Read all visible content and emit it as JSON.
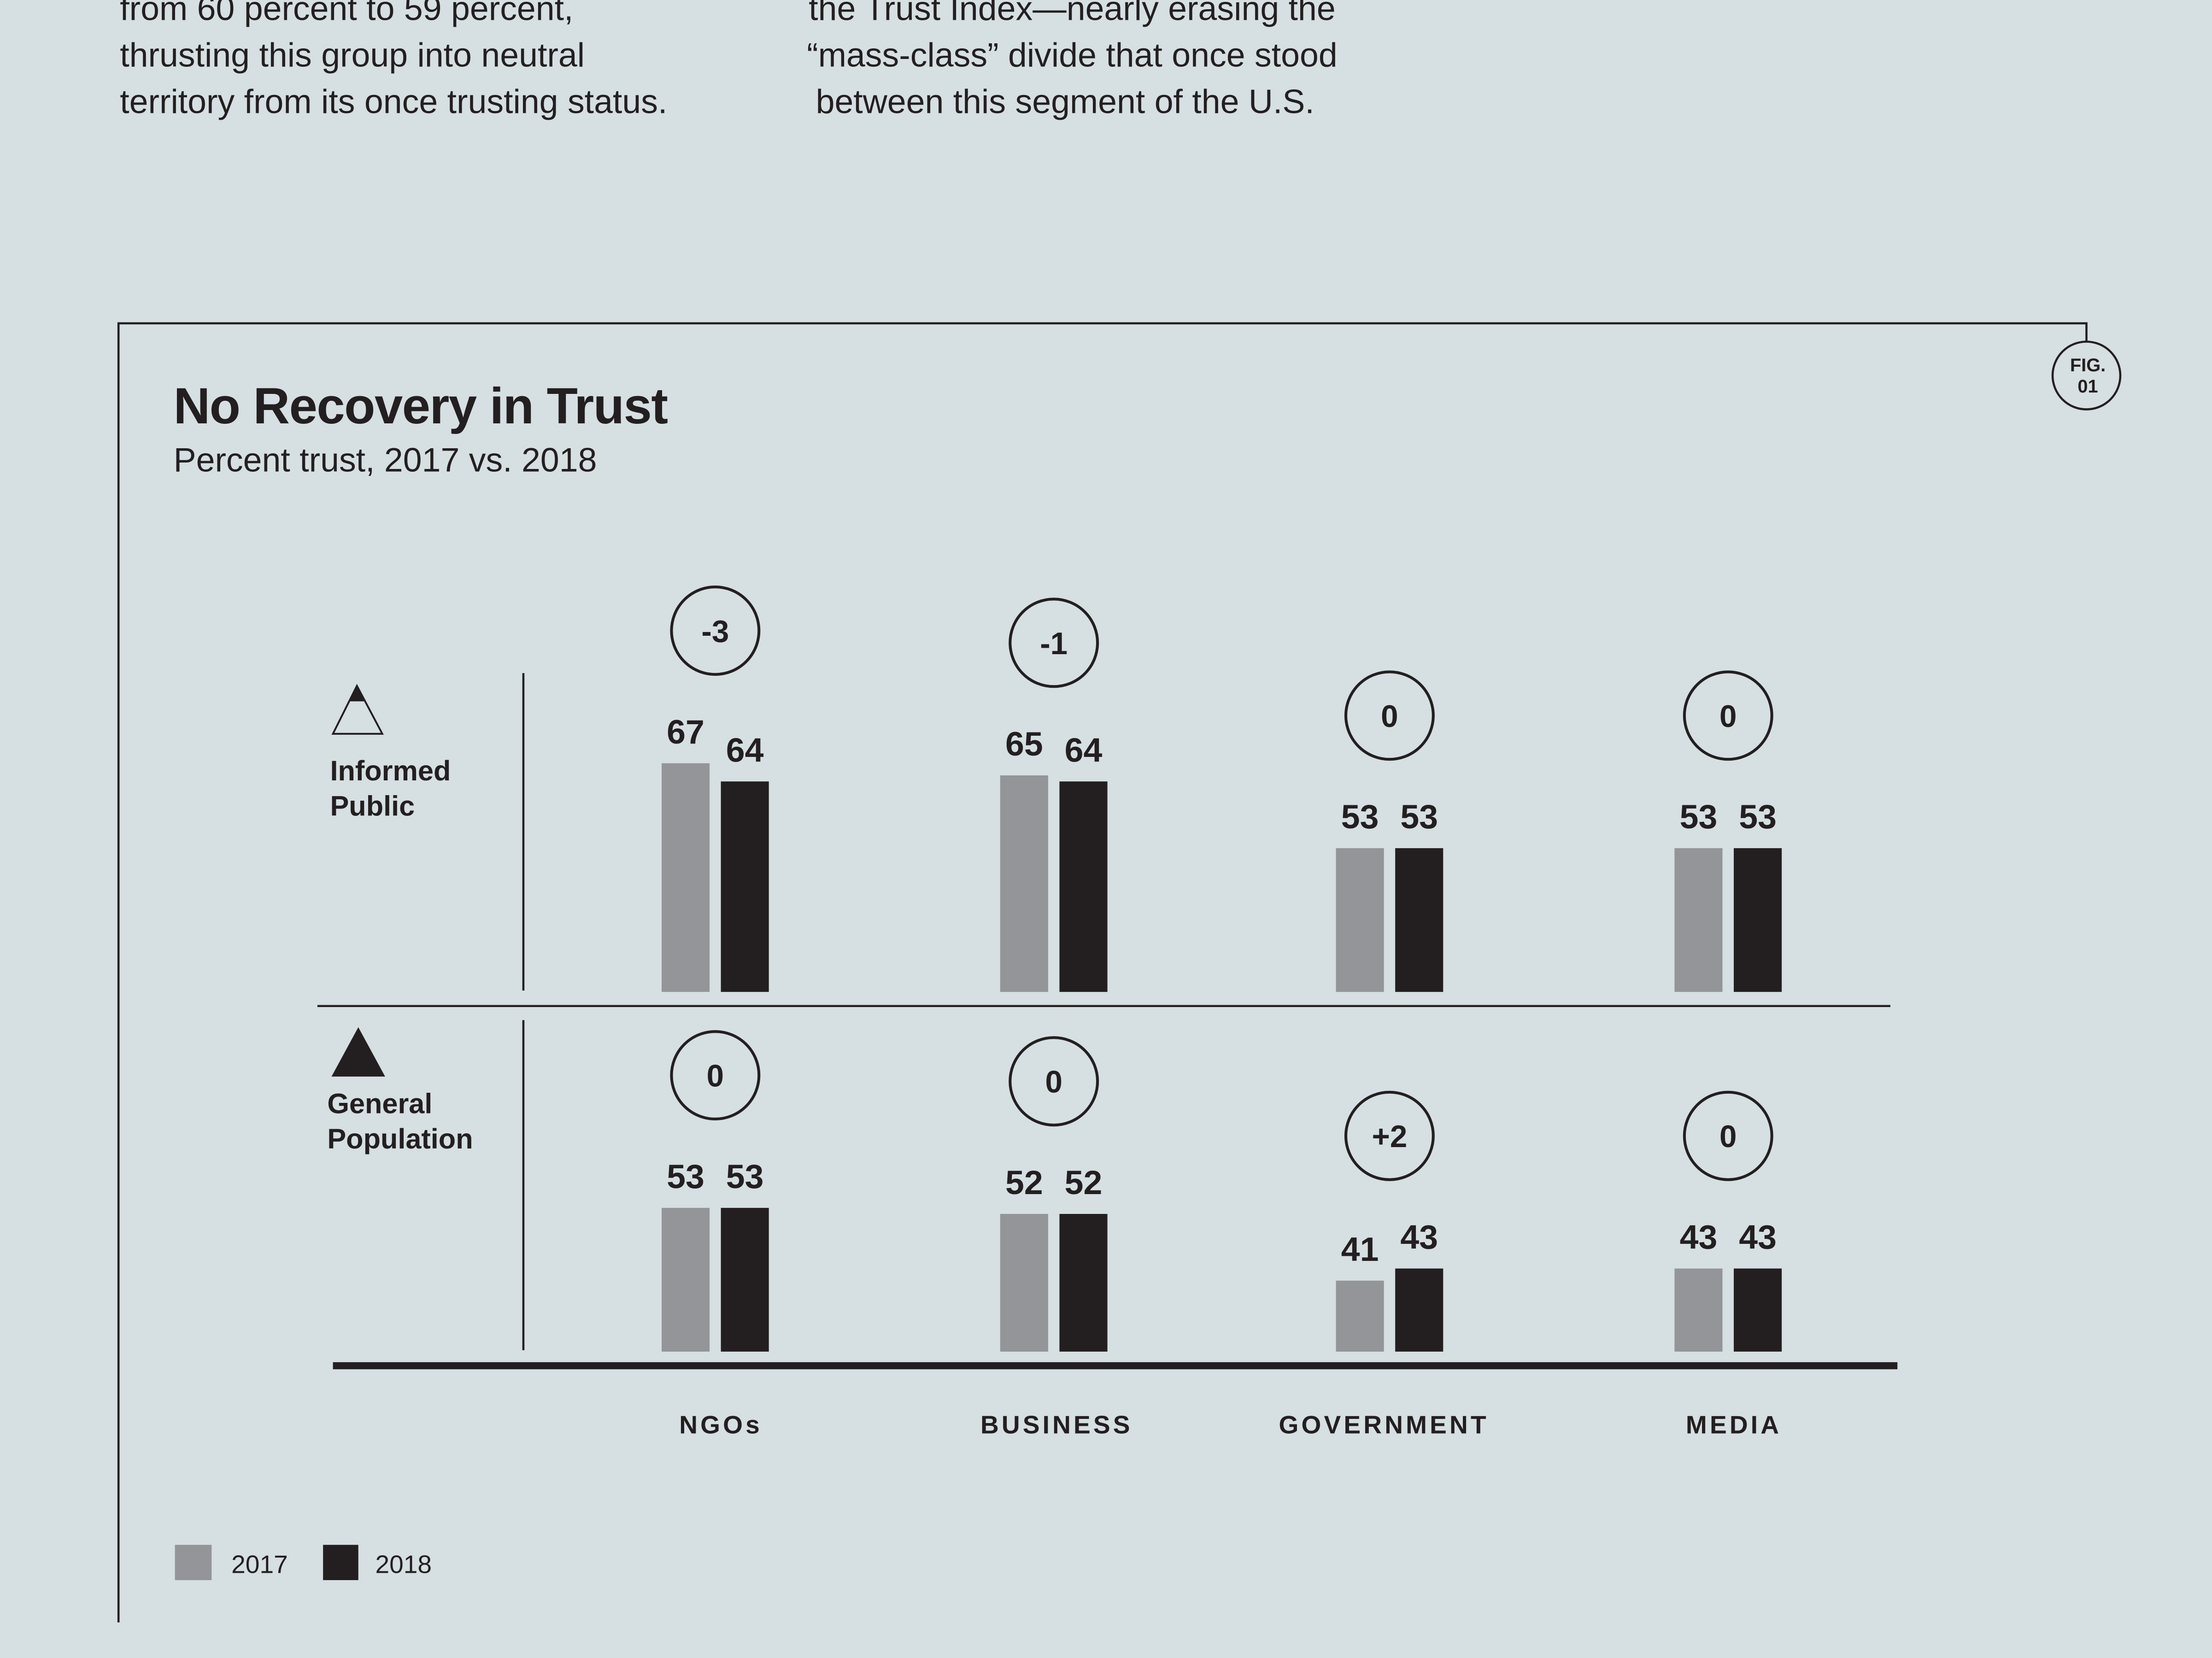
{
  "intro": {
    "left_lines": [
      "from 60 percent to 59 percent,",
      "thrusting this group into neutral",
      "territory from its once trusting status."
    ],
    "right_lines": [
      "the Trust Index—nearly erasing the",
      "“mass-class” divide that once stood",
      "between this segment of the U.S."
    ]
  },
  "figure_badge": {
    "line1": "FIG.",
    "line2": "01"
  },
  "colors": {
    "background": "#d6dfe2",
    "2017": "#939598",
    "2018": "#231f20"
  },
  "chart_data": {
    "type": "bar",
    "title": "No Recovery in Trust",
    "subtitle": "Percent trust, 2017 vs. 2018",
    "categories": [
      "NGOs",
      "BUSINESS",
      "GOVERNMENT",
      "MEDIA"
    ],
    "legend": [
      "2017",
      "2018"
    ],
    "legend_placement": "bottom-left",
    "grid": false,
    "panels": [
      {
        "label_lines": [
          "Informed",
          "Public"
        ],
        "icon": "triangle-outline-icon",
        "series": [
          {
            "name": "2017",
            "values": [
              67,
              65,
              53,
              53
            ]
          },
          {
            "name": "2018",
            "values": [
              64,
              64,
              53,
              53
            ]
          }
        ],
        "changes": [
          "-3",
          "-1",
          "0",
          "0"
        ]
      },
      {
        "label_lines": [
          "General",
          "Population"
        ],
        "icon": "triangle-filled-icon",
        "series": [
          {
            "name": "2017",
            "values": [
              53,
              52,
              41,
              43
            ]
          },
          {
            "name": "2018",
            "values": [
              53,
              52,
              43,
              43
            ]
          }
        ],
        "changes": [
          "0",
          "0",
          "+2",
          "0"
        ]
      }
    ]
  }
}
